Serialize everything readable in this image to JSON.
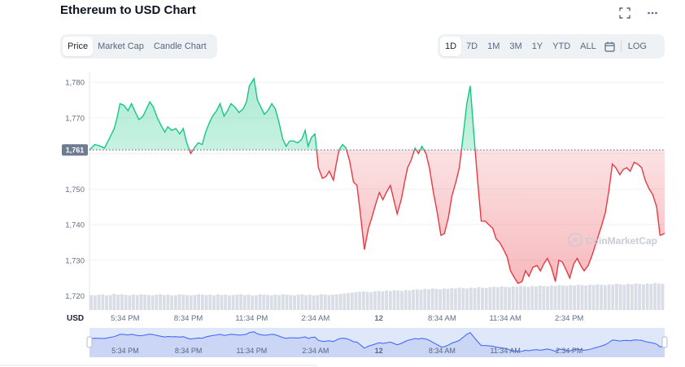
{
  "title": "Ethereum to USD Chart",
  "top_icons": [
    "fullscreen-icon",
    "more-icon"
  ],
  "tabs": [
    {
      "label": "Price",
      "active": true
    },
    {
      "label": "Market Cap",
      "active": false
    },
    {
      "label": "Candle Chart",
      "active": false
    }
  ],
  "ranges": [
    {
      "label": "1D",
      "active": true
    },
    {
      "label": "7D",
      "active": false
    },
    {
      "label": "1M",
      "active": false
    },
    {
      "label": "3M",
      "active": false
    },
    {
      "label": "1Y",
      "active": false
    },
    {
      "label": "YTD",
      "active": false
    },
    {
      "label": "ALL",
      "active": false
    }
  ],
  "log_label": "LOG",
  "watermark": "CoinMarketCap",
  "colors": {
    "up": "#16c784",
    "down": "#ea3943",
    "grid": "#eff2f5",
    "axis_text": "#616e85",
    "nav_fill": "#dfe7fb",
    "nav_line": "#3861fb"
  },
  "chart_data": {
    "type": "line",
    "ylabel": "USD",
    "ylim": [
      1716,
      1783
    ],
    "y_ticks": [
      1720,
      1730,
      1740,
      1750,
      1760,
      1770,
      1780
    ],
    "y_tick_labels": [
      "1,720",
      "1,730",
      "1,740",
      "1,750",
      "1,760",
      "1,770",
      "1,780"
    ],
    "baseline_value": 1761,
    "baseline_label": "1,761",
    "x_range": [
      0,
      100
    ],
    "x_ticks": [
      {
        "x": 6.2,
        "label": "5:34 PM"
      },
      {
        "x": 17.2,
        "label": "8:34 PM"
      },
      {
        "x": 28.2,
        "label": "11:34 PM"
      },
      {
        "x": 39.3,
        "label": "2:34 AM"
      },
      {
        "x": 50.3,
        "label": "12"
      },
      {
        "x": 61.3,
        "label": "8:34 AM"
      },
      {
        "x": 72.3,
        "label": "11:34 AM"
      },
      {
        "x": 83.4,
        "label": "2:34 PM"
      }
    ],
    "series": [
      {
        "x": [
          0,
          0.9,
          1.7,
          2.6,
          3.4,
          4.3,
          4.8,
          5.3,
          6.0,
          6.7,
          7.3,
          8.0,
          8.6,
          9.3,
          9.9,
          10.5,
          11.1,
          11.8,
          12.4,
          13.1,
          13.6,
          14.3,
          15.0,
          15.7,
          16.3,
          16.9,
          17.6,
          18.2,
          18.9,
          19.6,
          20.2,
          20.8,
          21.4,
          22.1,
          22.7,
          23.4,
          24.0,
          24.6,
          25.3,
          26.0,
          26.7,
          27.3,
          27.8,
          28.6,
          29.2,
          29.8,
          30.4,
          31.0,
          31.7,
          32.3,
          32.9,
          33.6,
          34.2,
          34.8,
          35.5,
          36.2,
          36.9,
          37.5,
          38.0,
          38.6,
          39.2,
          39.8,
          40.5,
          41.1,
          41.7,
          42.4,
          42.9,
          43.4,
          44.0,
          44.6,
          45.2,
          45.9,
          46.5,
          47.1,
          47.8,
          48.5,
          49.1,
          49.8,
          50.4,
          51.0,
          51.6,
          52.3,
          52.9,
          53.5,
          54.2,
          54.8,
          55.3,
          55.9,
          56.6,
          57.2,
          57.8,
          58.5,
          59.1,
          59.8,
          60.4,
          61.1,
          61.7,
          62.4,
          63.0,
          63.7,
          64.3,
          64.9,
          65.6,
          66.2,
          66.8,
          67.5,
          68.1,
          68.8,
          69.4,
          70.1,
          70.7,
          71.3,
          72.0,
          72.6,
          73.2,
          73.9,
          74.5,
          75.2,
          75.8,
          76.4,
          77.1,
          77.8,
          78.4,
          79.0,
          79.6,
          80.3,
          81.0,
          81.6,
          82.2,
          82.8,
          83.5,
          84.2,
          84.8,
          85.4,
          86.0,
          86.7,
          87.3,
          87.9,
          88.5,
          89.1,
          89.7,
          90.3,
          90.9,
          91.5,
          92.2,
          92.8,
          93.4,
          94.0,
          94.7,
          95.3,
          96.0,
          96.6,
          97.3,
          97.9,
          98.6,
          99.2,
          100
        ],
        "values": [
          1761.0,
          1762.5,
          1762.2,
          1761.5,
          1764.0,
          1767.0,
          1770.0,
          1774.0,
          1773.5,
          1772.0,
          1774.0,
          1771.5,
          1769.5,
          1770.5,
          1772.5,
          1774.5,
          1773.0,
          1770.0,
          1768.0,
          1766.0,
          1767.5,
          1766.5,
          1767.0,
          1765.5,
          1767.0,
          1763.0,
          1760.0,
          1761.5,
          1763.0,
          1762.5,
          1766.0,
          1768.5,
          1770.5,
          1772.0,
          1774.0,
          1770.5,
          1772.0,
          1774.0,
          1773.0,
          1771.5,
          1772.5,
          1774.5,
          1779.0,
          1781.0,
          1775.0,
          1773.0,
          1771.0,
          1772.0,
          1774.0,
          1772.5,
          1769.0,
          1764.0,
          1762.0,
          1763.5,
          1763.5,
          1763.0,
          1764.0,
          1766.5,
          1762.0,
          1764.5,
          1765.5,
          1756.0,
          1753.0,
          1753.5,
          1755.0,
          1752.5,
          1757.0,
          1761.0,
          1762.5,
          1761.5,
          1758.0,
          1752.0,
          1751.0,
          1743.0,
          1733.0,
          1739.0,
          1742.0,
          1746.0,
          1749.0,
          1747.0,
          1749.0,
          1751.0,
          1747.0,
          1743.0,
          1747.0,
          1752.0,
          1756.0,
          1758.0,
          1761.5,
          1760.0,
          1762.0,
          1760.0,
          1756.0,
          1749.0,
          1744.0,
          1737.0,
          1737.5,
          1742.0,
          1748.0,
          1752.0,
          1756.0,
          1764.0,
          1774.0,
          1779.0,
          1766.0,
          1752.0,
          1741.0,
          1741.0,
          1740.0,
          1739.0,
          1736.0,
          1735.0,
          1733.0,
          1731.0,
          1727.0,
          1725.0,
          1723.5,
          1724.0,
          1727.0,
          1725.5,
          1728.0,
          1728.5,
          1727.0,
          1729.0,
          1730.5,
          1728.0,
          1724.0,
          1730.0,
          1729.5,
          1727.5,
          1725.0,
          1729.0,
          1730.5,
          1728.5,
          1727.0,
          1728.5,
          1731.0,
          1734.0,
          1737.0,
          1740.0,
          1743.5,
          1749.5,
          1757.0,
          1756.0,
          1754.0,
          1755.5,
          1756.0,
          1755.0,
          1757.5,
          1757.0,
          1756.0,
          1752.5,
          1750.0,
          1748.5,
          1745.0,
          1737.0,
          1737.5
        ]
      }
    ],
    "volume_ylim": [
      0,
      100
    ],
    "volume_values": [
      36,
      35,
      37,
      38,
      35,
      36,
      39,
      37,
      38,
      36,
      35,
      37,
      36,
      38,
      37,
      36,
      35,
      37,
      38,
      36,
      37,
      35,
      36,
      38,
      37,
      36,
      35,
      36,
      38,
      37,
      36,
      37,
      35,
      38,
      36,
      37,
      35,
      36,
      37,
      38,
      36,
      37,
      35,
      36,
      38,
      37,
      36,
      35,
      37,
      36,
      38,
      37,
      36,
      35,
      37,
      38,
      36,
      37,
      35,
      36,
      38,
      37,
      36,
      37,
      38,
      39,
      40,
      41,
      42,
      43,
      44,
      45,
      44,
      43,
      45,
      46,
      45,
      47,
      46,
      48,
      47,
      46,
      48,
      47,
      49,
      50,
      49,
      51,
      50,
      52,
      51,
      50,
      52,
      51,
      53,
      52,
      54,
      53,
      52,
      54,
      53,
      55,
      54,
      53,
      55,
      56,
      55,
      57,
      56,
      55,
      57,
      56,
      58,
      57,
      56,
      58,
      57,
      59,
      58,
      57,
      59,
      58,
      60,
      59,
      58,
      60,
      59,
      61,
      60,
      59,
      61,
      60,
      62,
      61,
      60,
      62,
      61,
      63,
      62,
      61,
      63,
      62,
      64,
      63,
      62,
      64,
      63,
      65,
      64,
      63
    ]
  }
}
